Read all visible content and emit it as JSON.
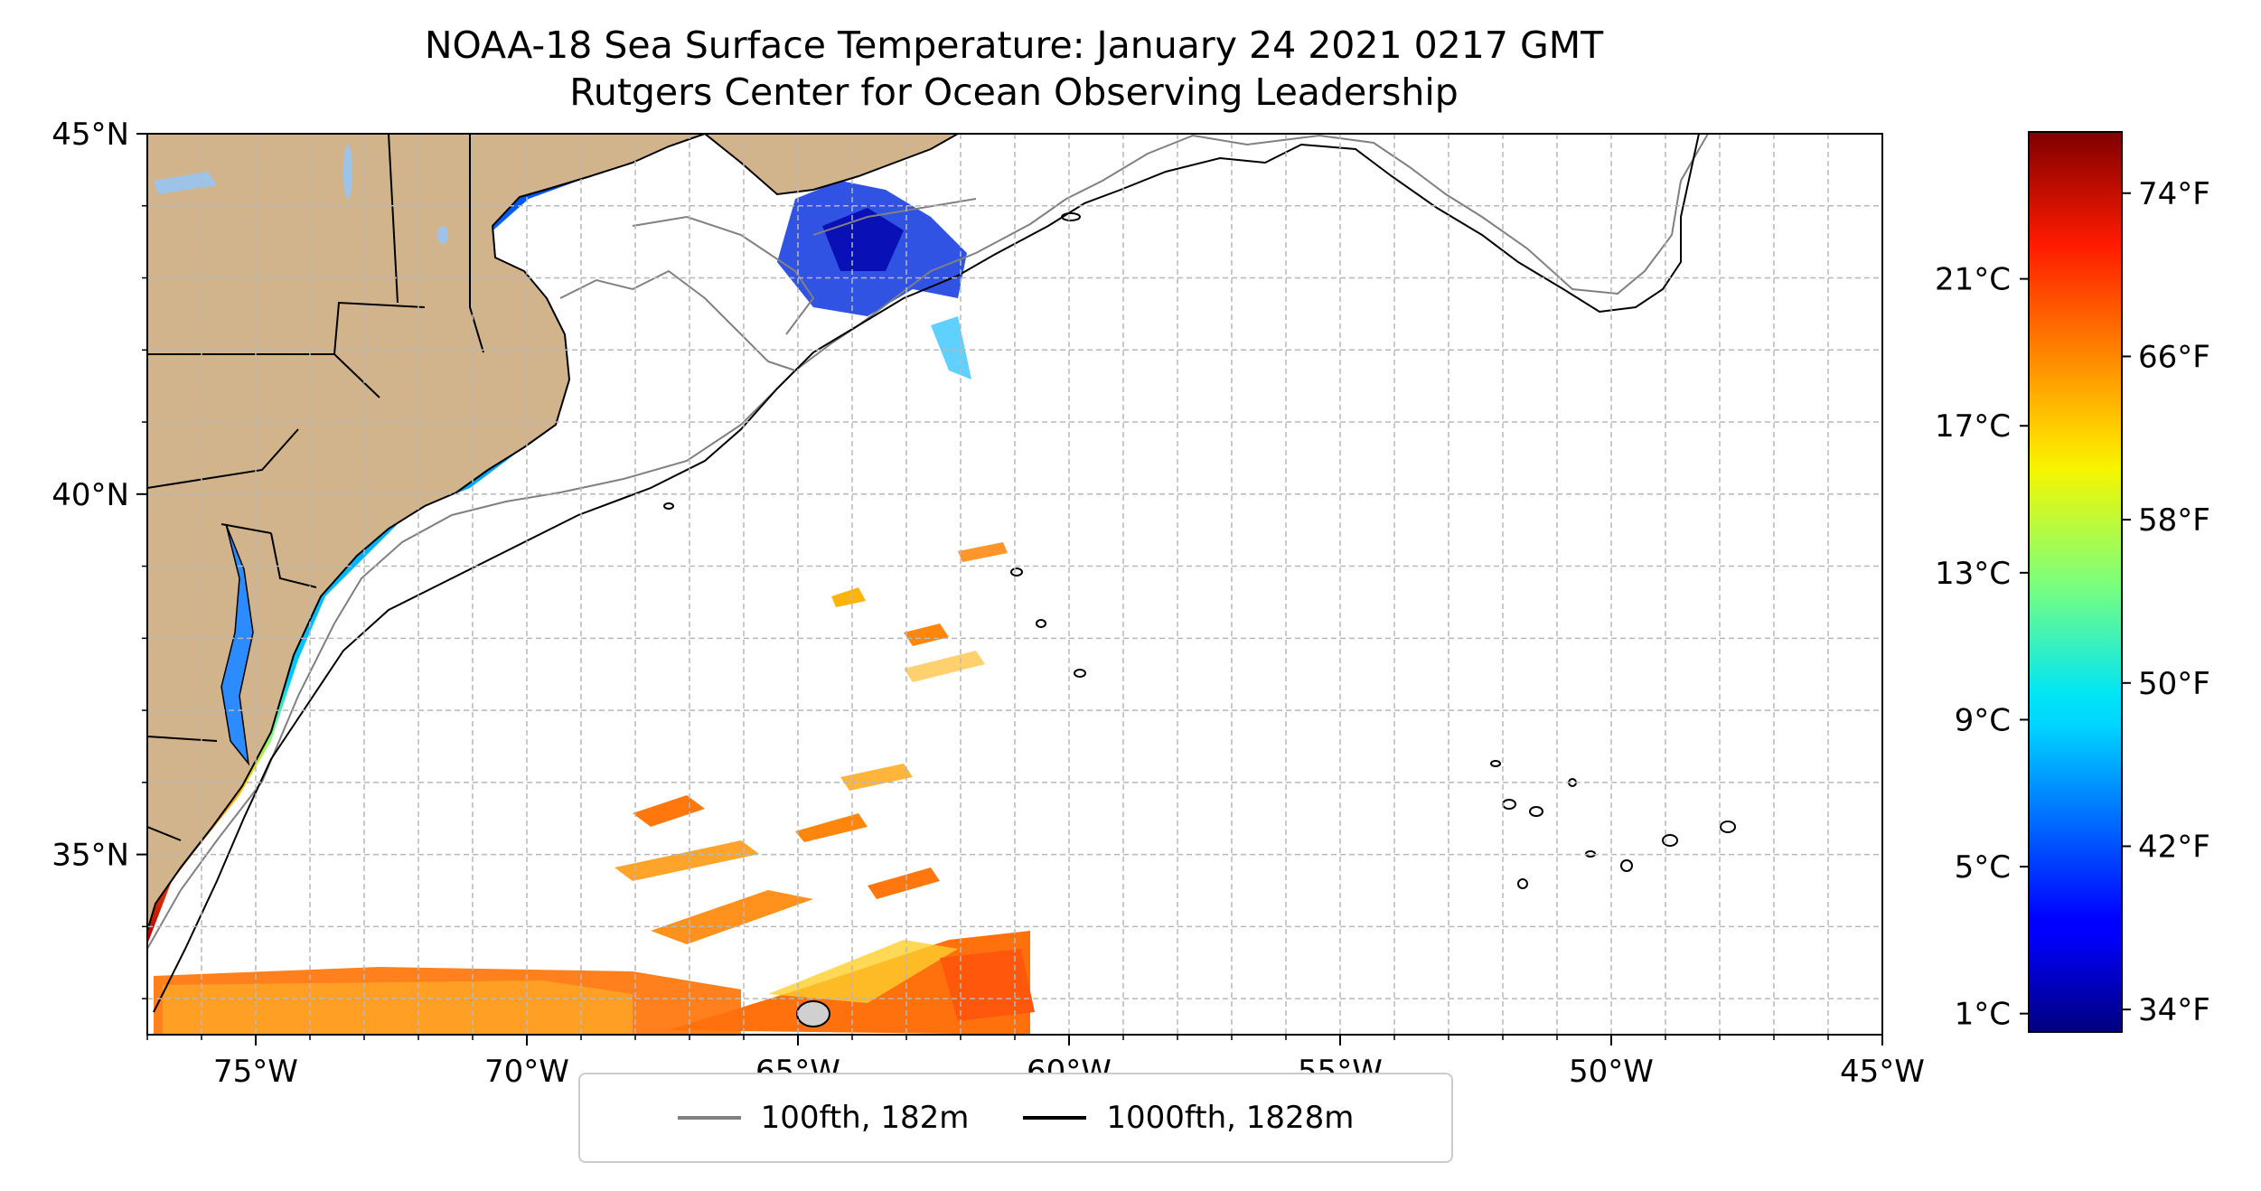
{
  "title": {
    "line1": "NOAA-18 Sea Surface Temperature: January 24 2021 0217 GMT",
    "line2": "Rutgers Center for Ocean Observing Leadership"
  },
  "map": {
    "lon_range": [
      -77,
      -45
    ],
    "lat_range": [
      32.5,
      45
    ],
    "x_ticks": [
      {
        "lon": -75,
        "label": "75°W"
      },
      {
        "lon": -70,
        "label": "70°W"
      },
      {
        "lon": -65,
        "label": "65°W"
      },
      {
        "lon": -60,
        "label": "60°W"
      },
      {
        "lon": -55,
        "label": "55°W"
      },
      {
        "lon": -50,
        "label": "50°W"
      },
      {
        "lon": -45,
        "label": "45°W"
      }
    ],
    "y_ticks": [
      {
        "lat": 45,
        "label": "45°N"
      },
      {
        "lat": 40,
        "label": "40°N"
      },
      {
        "lat": 35,
        "label": "35°N"
      }
    ],
    "grid": "dashed, every 1 degree",
    "land_color": "#d2b48c",
    "lake_color": "#9ec3e8",
    "isobath_100_color": "#808080",
    "isobath_1000_color": "#000000"
  },
  "legend": {
    "placement": "bottom-center",
    "items": [
      {
        "label": "100fth, 182m",
        "color": "#808080"
      },
      {
        "label": "1000fth, 1828m",
        "color": "#000000"
      }
    ]
  },
  "colorbar": {
    "colormap": "jet",
    "range_c": [
      0.5,
      25
    ],
    "celsius_ticks": [
      {
        "value": 1,
        "label": "1°C"
      },
      {
        "value": 5,
        "label": "5°C"
      },
      {
        "value": 9,
        "label": "9°C"
      },
      {
        "value": 13,
        "label": "13°C"
      },
      {
        "value": 17,
        "label": "17°C"
      },
      {
        "value": 21,
        "label": "21°C"
      }
    ],
    "fahrenheit_ticks": [
      {
        "value": 34,
        "label": "34°F"
      },
      {
        "value": 42,
        "label": "42°F"
      },
      {
        "value": 50,
        "label": "50°F"
      },
      {
        "value": 58,
        "label": "58°F"
      },
      {
        "value": 66,
        "label": "66°F"
      },
      {
        "value": 74,
        "label": "74°F"
      }
    ]
  }
}
